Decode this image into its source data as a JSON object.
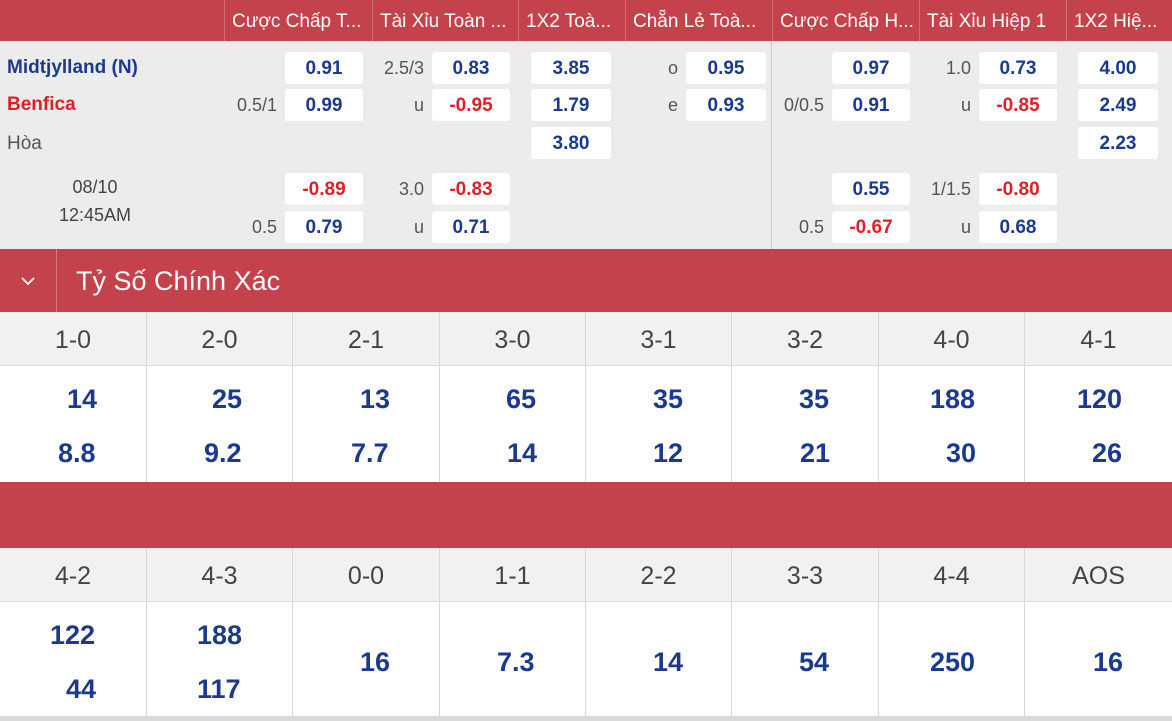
{
  "headers": [
    "Cược Chấp T...",
    "Tài Xỉu Toàn ...",
    "1X2 Toà...",
    "Chẵn Lẻ Toà...",
    "Cược Chấp H...",
    "Tài Xỉu Hiệp 1",
    "1X2 Hiệ..."
  ],
  "match": {
    "home": "Midtjylland (N)",
    "away": "Benfica",
    "draw": "Hòa",
    "date": "08/10",
    "time": "12:45AM"
  },
  "odds": {
    "hdp_ft": {
      "line1": "0.5/1",
      "home1": "0.91",
      "away1": "0.99",
      "line2": "0.5",
      "home2": "-0.89",
      "away2": "0.79"
    },
    "ou_ft": {
      "line1": "2.5/3",
      "over1": "0.83",
      "u_label1": "u",
      "under1": "-0.95",
      "line2": "3.0",
      "over2": "-0.83",
      "u_label2": "u",
      "under2": "0.71"
    },
    "x12_ft": {
      "home": "3.85",
      "away": "1.79",
      "draw": "3.80"
    },
    "oe_ft": {
      "o_label": "o",
      "odd": "0.95",
      "e_label": "e",
      "even": "0.93"
    },
    "hdp_h1": {
      "line1": "0/0.5",
      "home1": "0.97",
      "away1": "0.91",
      "line2": "0.5",
      "home2": "0.55",
      "away2": "-0.67"
    },
    "ou_h1": {
      "line1": "1.0",
      "over1": "0.73",
      "u_label1": "u",
      "under1": "-0.85",
      "line2": "1/1.5",
      "over2": "-0.80",
      "u_label2": "u",
      "under2": "0.68"
    },
    "x12_h1": {
      "home": "4.00",
      "away": "2.49",
      "draw": "2.23"
    }
  },
  "section_title": "Tỷ Số Chính Xác",
  "icons": {
    "toggle": "chevron-down-icon"
  },
  "colors": {
    "accent": "#c4424b",
    "odds_blue": "#1b3a8f",
    "odds_red": "#e01f26"
  },
  "correct_score_row1": [
    {
      "score": "1-0",
      "v1": "14",
      "v2": "8.8"
    },
    {
      "score": "2-0",
      "v1": "25",
      "v2": "9.2"
    },
    {
      "score": "2-1",
      "v1": "13",
      "v2": "7.7"
    },
    {
      "score": "3-0",
      "v1": "65",
      "v2": "14"
    },
    {
      "score": "3-1",
      "v1": "35",
      "v2": "12"
    },
    {
      "score": "3-2",
      "v1": "35",
      "v2": "21"
    },
    {
      "score": "4-0",
      "v1": "188",
      "v2": "30"
    },
    {
      "score": "4-1",
      "v1": "120",
      "v2": "26"
    }
  ],
  "correct_score_row2": [
    {
      "score": "4-2",
      "v1": "122",
      "v2": "44"
    },
    {
      "score": "4-3",
      "v1": "188",
      "v2": "117"
    },
    {
      "score": "0-0",
      "v": "16"
    },
    {
      "score": "1-1",
      "v": "7.3"
    },
    {
      "score": "2-2",
      "v": "14"
    },
    {
      "score": "3-3",
      "v": "54"
    },
    {
      "score": "4-4",
      "v": "250"
    },
    {
      "score": "AOS",
      "v": "16"
    }
  ]
}
